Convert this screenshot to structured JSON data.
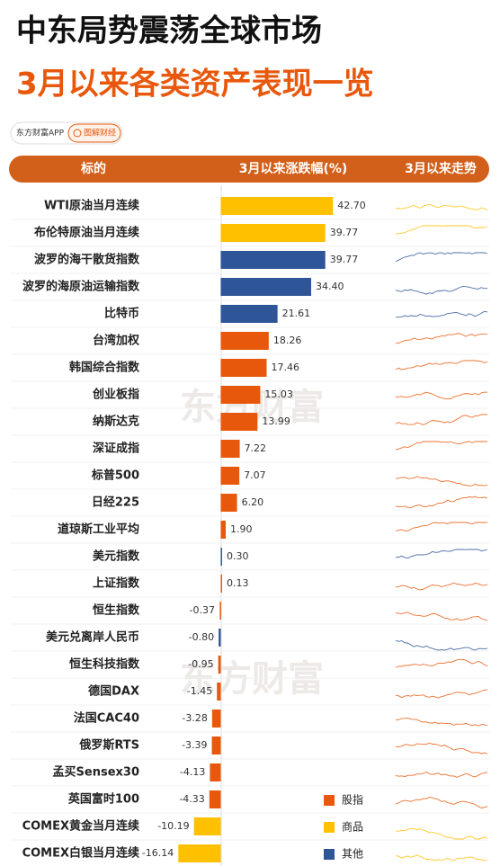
{
  "title": "中东局势震荡全球市场",
  "subtitle": "3月以来各类资产表现一览",
  "app": "东方财富APP",
  "badge": "图解财经",
  "watermark": "东方财富",
  "chart_data": {
    "type": "bar",
    "orientation": "horizontal",
    "columns": [
      "标的",
      "3月以来涨跌幅(%)",
      "3月以来走势"
    ],
    "categories": [
      "WTI原油当月连续",
      "布伦特原油当月连续",
      "波罗的海干散货指数",
      "波罗的海原油运输指数",
      "比特币",
      "台湾加权",
      "韩国综合指数",
      "创业板指",
      "纳斯达克",
      "深证成指",
      "标普500",
      "日经225",
      "道琼斯工业平均",
      "美元指数",
      "上证指数",
      "恒生指数",
      "美元兑离岸人民币",
      "恒生科技指数",
      "德国DAX",
      "法国CAC40",
      "俄罗斯RTS",
      "孟买Sensex30",
      "英国富时100",
      "COMEX黄金当月连续",
      "COMEX白银当月连续"
    ],
    "series": [
      {
        "name": "股指",
        "color": "#e8580c",
        "values": [
          null,
          null,
          null,
          null,
          null,
          18.26,
          17.46,
          15.03,
          13.99,
          7.22,
          7.07,
          6.2,
          1.9,
          null,
          0.13,
          -0.37,
          null,
          -0.95,
          -1.45,
          -3.28,
          -3.39,
          -4.13,
          -4.33,
          null,
          null
        ],
        "value_labels": [
          null,
          null,
          null,
          null,
          null,
          "18.26",
          "17.46",
          "15.03",
          "13.99",
          "7.22",
          "7.07",
          "6.20",
          "1.90",
          null,
          "0.13",
          "-0.37",
          null,
          "-0.95",
          "-1.45",
          "-3.28",
          "-3.39",
          "-4.13",
          "-4.33",
          null,
          null
        ]
      },
      {
        "name": "商品",
        "color": "#ffc000",
        "values": [
          42.7,
          39.77,
          null,
          null,
          null,
          null,
          null,
          null,
          null,
          null,
          null,
          null,
          null,
          null,
          null,
          null,
          null,
          null,
          null,
          null,
          null,
          null,
          null,
          -10.19,
          -16.14
        ],
        "value_labels": [
          "42.70",
          "39.77",
          null,
          null,
          null,
          null,
          null,
          null,
          null,
          null,
          null,
          null,
          null,
          null,
          null,
          null,
          null,
          null,
          null,
          null,
          null,
          null,
          null,
          "-10.19",
          "-16.14"
        ]
      },
      {
        "name": "其他",
        "color": "#2e5597",
        "values": [
          null,
          null,
          39.77,
          34.4,
          21.61,
          null,
          null,
          null,
          null,
          null,
          null,
          null,
          null,
          0.3,
          null,
          null,
          -0.8,
          null,
          null,
          null,
          null,
          null,
          null,
          null,
          null
        ],
        "value_labels": [
          null,
          null,
          "39.77",
          "34.40",
          "21.61",
          null,
          null,
          null,
          null,
          null,
          null,
          null,
          null,
          "0.30",
          null,
          null,
          "-0.80",
          null,
          null,
          null,
          null,
          null,
          null,
          null,
          null
        ]
      }
    ],
    "xlim": [
      -20,
      45
    ]
  }
}
